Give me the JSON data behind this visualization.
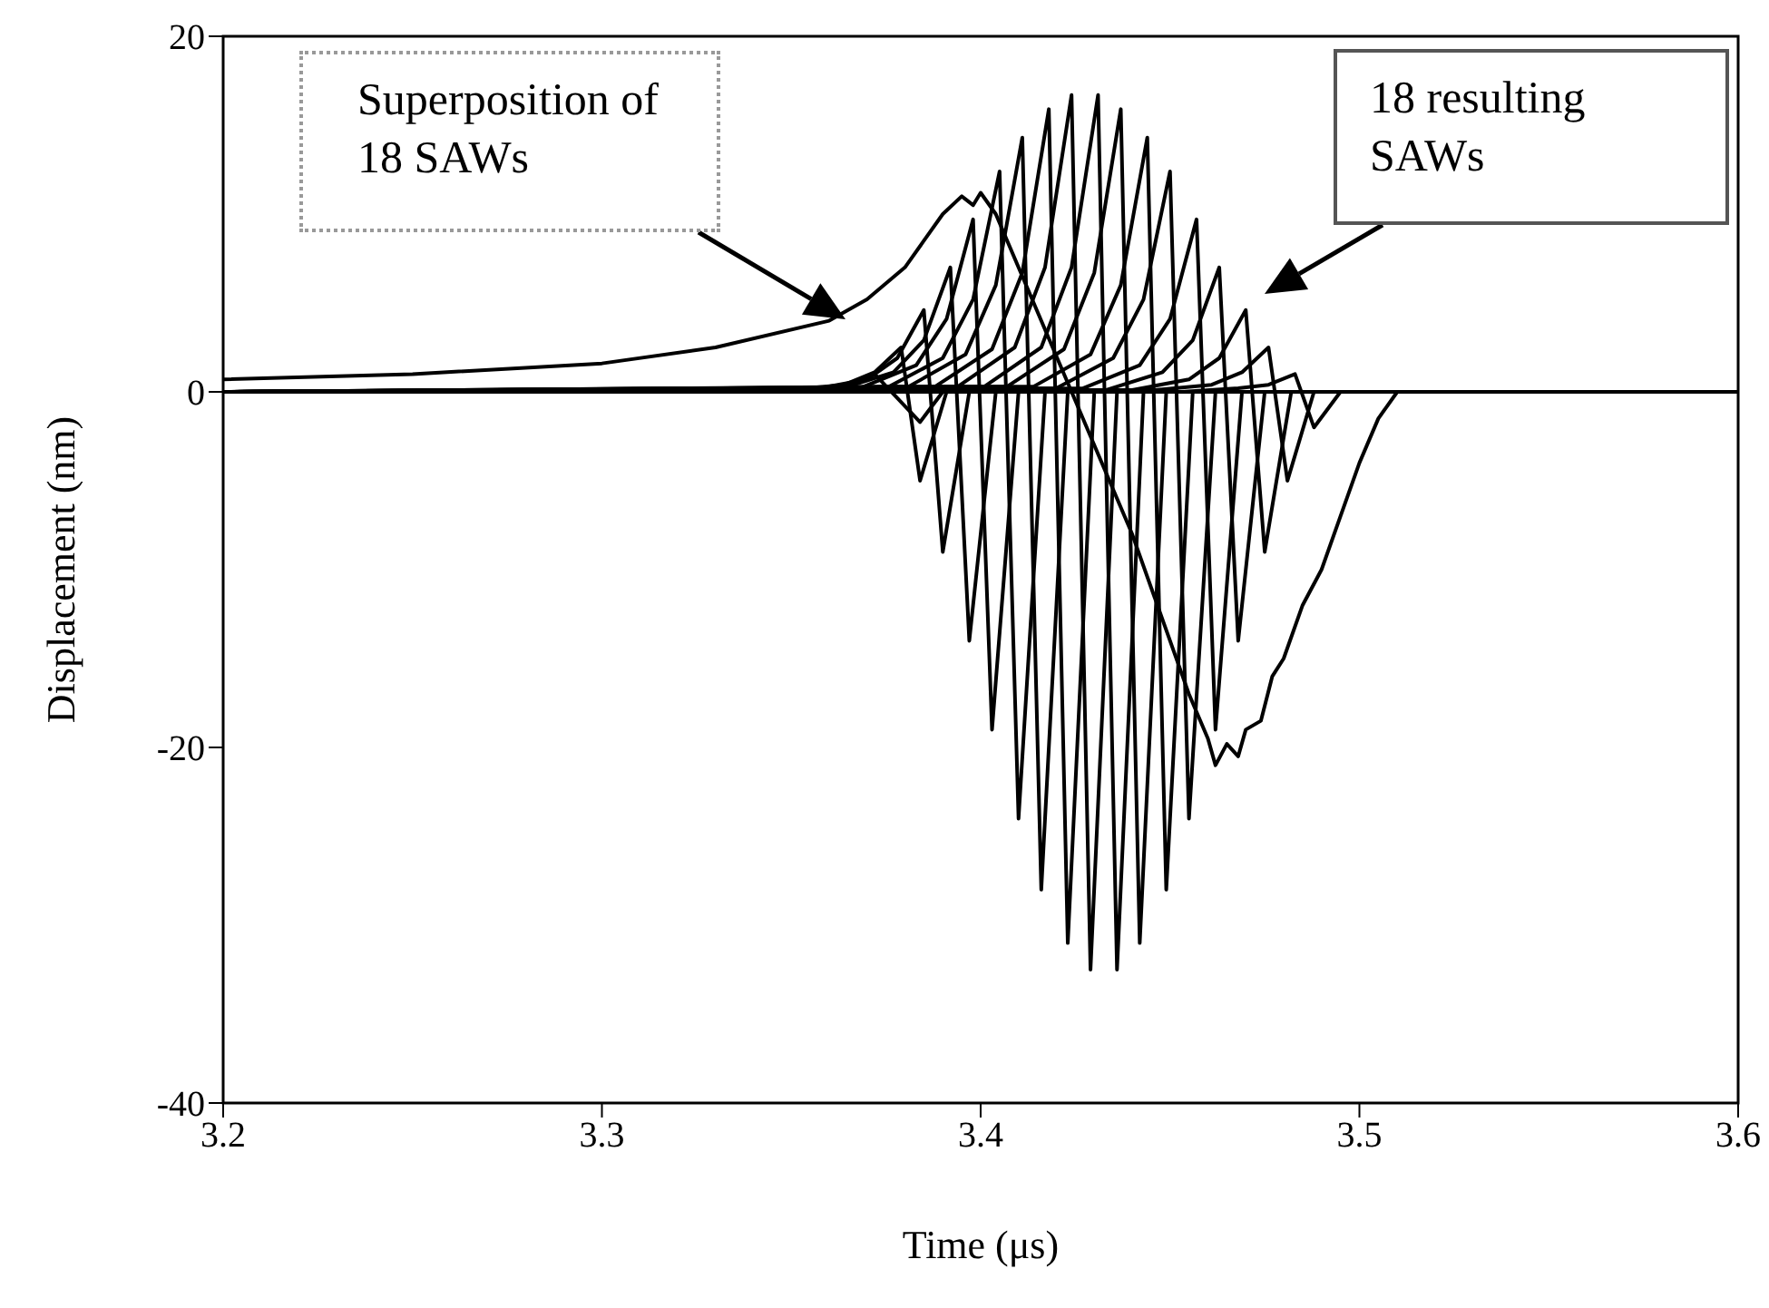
{
  "chart_data": {
    "type": "line",
    "xlabel": "Time (μs)",
    "ylabel": "Displacement (nm)",
    "xlim": [
      3.2,
      3.6
    ],
    "xticks": [
      3.2,
      3.3,
      3.4,
      3.5,
      3.6
    ],
    "ylim": [
      -40,
      20
    ],
    "yticks": [
      -40,
      -20,
      0,
      20
    ],
    "grid": false,
    "annotations": [
      "Superposition of 18 SAWs",
      "18 resulting SAWs"
    ],
    "series": [
      {
        "color": "#000000",
        "x": [
          3.2,
          3.25,
          3.3,
          3.33,
          3.36,
          3.37,
          3.38,
          3.385,
          3.39,
          3.395,
          3.398,
          3.4,
          3.404,
          3.41,
          3.42,
          3.43,
          3.44,
          3.45,
          3.455,
          3.46,
          3.462,
          3.465,
          3.468,
          3.47,
          3.474,
          3.477,
          3.48,
          3.485,
          3.49,
          3.495,
          3.5,
          3.505,
          3.51,
          3.6
        ],
        "values": [
          0.7,
          1.0,
          1.6,
          2.5,
          4.0,
          5.2,
          7,
          8.5,
          10.0,
          11.0,
          10.5,
          11.2,
          10.0,
          7,
          2,
          -3,
          -8,
          -14,
          -17,
          -19.5,
          -21,
          -19.8,
          -20.5,
          -19,
          -18.5,
          -16,
          -15,
          -12,
          -10,
          -7,
          -4,
          -1.5,
          0,
          0
        ]
      },
      {
        "color": "#000000",
        "x": [
          3.342,
          3.357,
          3.365,
          3.372,
          3.384,
          3.39
        ],
        "values": [
          0.0,
          0.2,
          0.4,
          1.0,
          -1.7,
          0
        ]
      },
      {
        "color": "#000000",
        "x": [
          3.2,
          3.349,
          3.364,
          3.372,
          3.379,
          3.384,
          3.391,
          3.6
        ],
        "values": [
          0,
          0.1,
          0.4,
          1.1,
          2.5,
          -5,
          0,
          0
        ]
      },
      {
        "color": "#000000",
        "x": [
          3.2,
          3.355,
          3.37,
          3.378,
          3.385,
          3.39,
          3.397,
          3.6
        ],
        "values": [
          0,
          0.1,
          0.7,
          1.9,
          4.6,
          -9,
          0,
          0
        ]
      },
      {
        "color": "#000000",
        "x": [
          3.2,
          3.362,
          3.377,
          3.385,
          3.392,
          3.397,
          3.404,
          3.6
        ],
        "values": [
          0,
          0.1,
          1.1,
          2.9,
          7.0,
          -14,
          0,
          0
        ]
      },
      {
        "color": "#000000",
        "x": [
          3.2,
          3.368,
          3.383,
          3.391,
          3.398,
          3.403,
          3.41,
          3.6
        ],
        "values": [
          0,
          0.2,
          1.5,
          4.1,
          9.7,
          -19,
          0,
          0
        ]
      },
      {
        "color": "#000000",
        "x": [
          3.2,
          3.375,
          3.39,
          3.398,
          3.405,
          3.41,
          3.417,
          3.6
        ],
        "values": [
          0,
          0.2,
          1.9,
          5.2,
          12.4,
          -24,
          0,
          0
        ]
      },
      {
        "color": "#000000",
        "x": [
          3.2,
          3.381,
          3.396,
          3.404,
          3.411,
          3.416,
          3.423,
          3.6
        ],
        "values": [
          0,
          0.3,
          2.1,
          6.0,
          14.3,
          -28,
          0,
          0
        ]
      },
      {
        "color": "#000000",
        "x": [
          3.2,
          3.388,
          3.403,
          3.411,
          3.418,
          3.423,
          3.43,
          3.6
        ],
        "values": [
          0,
          0.3,
          2.4,
          6.7,
          15.9,
          -31,
          0,
          0
        ]
      },
      {
        "color": "#000000",
        "x": [
          3.2,
          3.394,
          3.409,
          3.417,
          3.424,
          3.429,
          3.436,
          3.6
        ],
        "values": [
          0,
          0.3,
          2.5,
          7.0,
          16.7,
          -32.5,
          0,
          0
        ]
      },
      {
        "color": "#000000",
        "x": [
          3.2,
          3.401,
          3.416,
          3.424,
          3.431,
          3.436,
          3.443,
          3.6
        ],
        "values": [
          0,
          0.3,
          2.5,
          7.0,
          16.7,
          -32.5,
          0,
          0
        ]
      },
      {
        "color": "#000000",
        "x": [
          3.2,
          3.407,
          3.422,
          3.43,
          3.437,
          3.442,
          3.449,
          3.6
        ],
        "values": [
          0,
          0.3,
          2.4,
          6.7,
          15.9,
          -31,
          0,
          0
        ]
      },
      {
        "color": "#000000",
        "x": [
          3.2,
          3.414,
          3.429,
          3.437,
          3.444,
          3.449,
          3.456,
          3.6
        ],
        "values": [
          0,
          0.3,
          2.1,
          6.0,
          14.3,
          -28,
          0,
          0
        ]
      },
      {
        "color": "#000000",
        "x": [
          3.2,
          3.42,
          3.435,
          3.443,
          3.45,
          3.455,
          3.462,
          3.6
        ],
        "values": [
          0,
          0.2,
          1.9,
          5.2,
          12.4,
          -24,
          0,
          0
        ]
      },
      {
        "color": "#000000",
        "x": [
          3.2,
          3.427,
          3.442,
          3.45,
          3.457,
          3.462,
          3.469,
          3.6
        ],
        "values": [
          0,
          0.2,
          1.5,
          4.1,
          9.7,
          -19,
          0,
          0
        ]
      },
      {
        "color": "#000000",
        "x": [
          3.2,
          3.433,
          3.448,
          3.456,
          3.463,
          3.468,
          3.475,
          3.6
        ],
        "values": [
          0,
          0.1,
          1.1,
          2.9,
          7.0,
          -14,
          0,
          0
        ]
      },
      {
        "color": "#000000",
        "x": [
          3.2,
          3.44,
          3.455,
          3.463,
          3.47,
          3.475,
          3.482,
          3.6
        ],
        "values": [
          0,
          0.1,
          0.7,
          1.9,
          4.6,
          -9,
          0,
          0
        ]
      },
      {
        "color": "#000000",
        "x": [
          3.2,
          3.446,
          3.461,
          3.469,
          3.476,
          3.481,
          3.488,
          3.6
        ],
        "values": [
          0,
          0.1,
          0.4,
          1.1,
          2.5,
          -5,
          0,
          0
        ]
      },
      {
        "color": "#000000",
        "x": [
          3.2,
          3.453,
          3.468,
          3.476,
          3.483,
          3.488,
          3.495,
          3.6
        ],
        "values": [
          0,
          0.0,
          0.2,
          0.4,
          1.0,
          -2,
          0,
          0
        ]
      }
    ]
  }
}
